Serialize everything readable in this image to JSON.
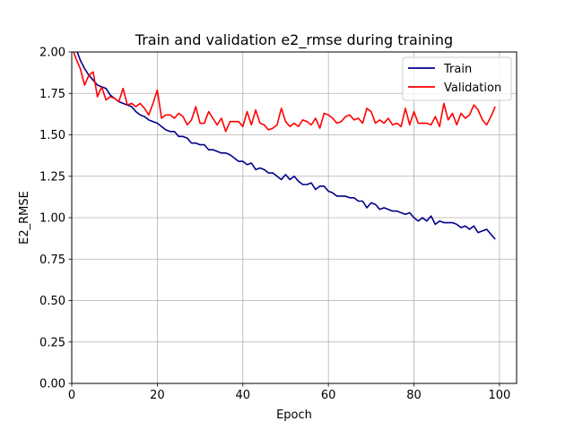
{
  "chart_data": {
    "type": "line",
    "title": "Train and validation e2_rmse during training",
    "xlabel": "Epoch",
    "ylabel": "E2_RMSE",
    "xlim": [
      0,
      104
    ],
    "ylim": [
      0.0,
      2.0
    ],
    "grid": true,
    "legend_position": "top-right",
    "x_ticks": [
      0,
      20,
      40,
      60,
      80,
      100
    ],
    "y_ticks": [
      0.0,
      0.25,
      0.5,
      0.75,
      1.0,
      1.25,
      1.5,
      1.75,
      2.0
    ],
    "x_tick_labels": [
      "0",
      "20",
      "40",
      "60",
      "80",
      "100"
    ],
    "y_tick_labels": [
      "0.00",
      "0.25",
      "0.50",
      "0.75",
      "1.00",
      "1.25",
      "1.50",
      "1.75",
      "2.00"
    ],
    "x": [
      0,
      1,
      2,
      3,
      4,
      5,
      6,
      7,
      8,
      9,
      10,
      11,
      12,
      13,
      14,
      15,
      16,
      17,
      18,
      19,
      20,
      21,
      22,
      23,
      24,
      25,
      26,
      27,
      28,
      29,
      30,
      31,
      32,
      33,
      34,
      35,
      36,
      37,
      38,
      39,
      40,
      41,
      42,
      43,
      44,
      45,
      46,
      47,
      48,
      49,
      50,
      51,
      52,
      53,
      54,
      55,
      56,
      57,
      58,
      59,
      60,
      61,
      62,
      63,
      64,
      65,
      66,
      67,
      68,
      69,
      70,
      71,
      72,
      73,
      74,
      75,
      76,
      77,
      78,
      79,
      80,
      81,
      82,
      83,
      84,
      85,
      86,
      87,
      88,
      89,
      90,
      91,
      92,
      93,
      94,
      95,
      96,
      97,
      98,
      99
    ],
    "series": [
      {
        "name": "Train",
        "color": "#00008b",
        "values": [
          2.09,
          2.02,
          1.95,
          1.9,
          1.86,
          1.83,
          1.8,
          1.79,
          1.78,
          1.74,
          1.72,
          1.7,
          1.69,
          1.68,
          1.67,
          1.64,
          1.62,
          1.61,
          1.59,
          1.58,
          1.57,
          1.55,
          1.53,
          1.52,
          1.52,
          1.49,
          1.49,
          1.48,
          1.45,
          1.45,
          1.44,
          1.44,
          1.41,
          1.41,
          1.4,
          1.39,
          1.39,
          1.38,
          1.36,
          1.34,
          1.34,
          1.32,
          1.33,
          1.29,
          1.3,
          1.29,
          1.27,
          1.27,
          1.25,
          1.23,
          1.26,
          1.23,
          1.25,
          1.22,
          1.2,
          1.2,
          1.21,
          1.17,
          1.19,
          1.19,
          1.16,
          1.15,
          1.13,
          1.13,
          1.13,
          1.12,
          1.12,
          1.1,
          1.1,
          1.06,
          1.09,
          1.08,
          1.05,
          1.06,
          1.05,
          1.04,
          1.04,
          1.03,
          1.02,
          1.03,
          1.0,
          0.98,
          1.0,
          0.98,
          1.01,
          0.96,
          0.98,
          0.97,
          0.97,
          0.97,
          0.96,
          0.94,
          0.95,
          0.93,
          0.95,
          0.91,
          0.92,
          0.93,
          0.9,
          0.87
        ]
      },
      {
        "name": "Validation",
        "color": "#ff0000",
        "values": [
          2.03,
          1.96,
          1.9,
          1.8,
          1.86,
          1.88,
          1.73,
          1.79,
          1.71,
          1.73,
          1.72,
          1.7,
          1.78,
          1.68,
          1.69,
          1.67,
          1.69,
          1.66,
          1.62,
          1.69,
          1.77,
          1.6,
          1.62,
          1.62,
          1.6,
          1.63,
          1.61,
          1.56,
          1.59,
          1.67,
          1.57,
          1.57,
          1.64,
          1.6,
          1.56,
          1.6,
          1.52,
          1.58,
          1.58,
          1.58,
          1.55,
          1.64,
          1.56,
          1.65,
          1.57,
          1.56,
          1.53,
          1.54,
          1.56,
          1.66,
          1.58,
          1.55,
          1.57,
          1.55,
          1.59,
          1.58,
          1.56,
          1.6,
          1.54,
          1.63,
          1.62,
          1.6,
          1.57,
          1.58,
          1.61,
          1.62,
          1.59,
          1.6,
          1.57,
          1.66,
          1.64,
          1.57,
          1.59,
          1.57,
          1.6,
          1.56,
          1.57,
          1.55,
          1.66,
          1.56,
          1.64,
          1.57,
          1.57,
          1.57,
          1.56,
          1.61,
          1.55,
          1.69,
          1.59,
          1.63,
          1.56,
          1.63,
          1.6,
          1.62,
          1.68,
          1.65,
          1.59,
          1.56,
          1.61,
          1.67
        ]
      }
    ]
  }
}
